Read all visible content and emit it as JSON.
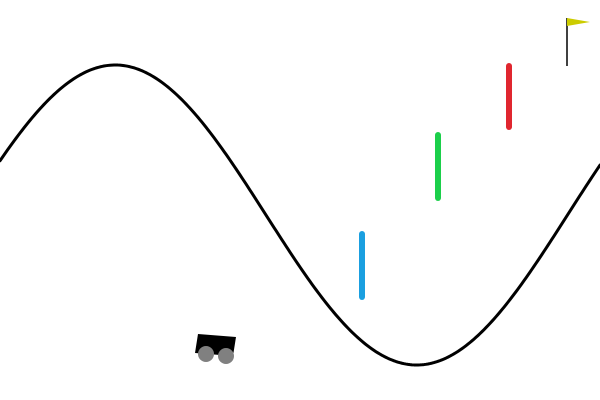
{
  "scene": {
    "background_color": "#ffffff",
    "track_color": "#000000",
    "car_body_color": "#000000",
    "wheel_color": "#808080",
    "flag_color": "#cccc00",
    "flagpole_color": "#000000"
  },
  "markers": [
    {
      "name": "blue-marker",
      "color": "#1a9fe0"
    },
    {
      "name": "green-marker",
      "color": "#1bcf4a"
    },
    {
      "name": "red-marker",
      "color": "#e0262f"
    }
  ],
  "icons": {
    "car": "mountain-car-icon",
    "flag": "goal-flag-icon"
  }
}
